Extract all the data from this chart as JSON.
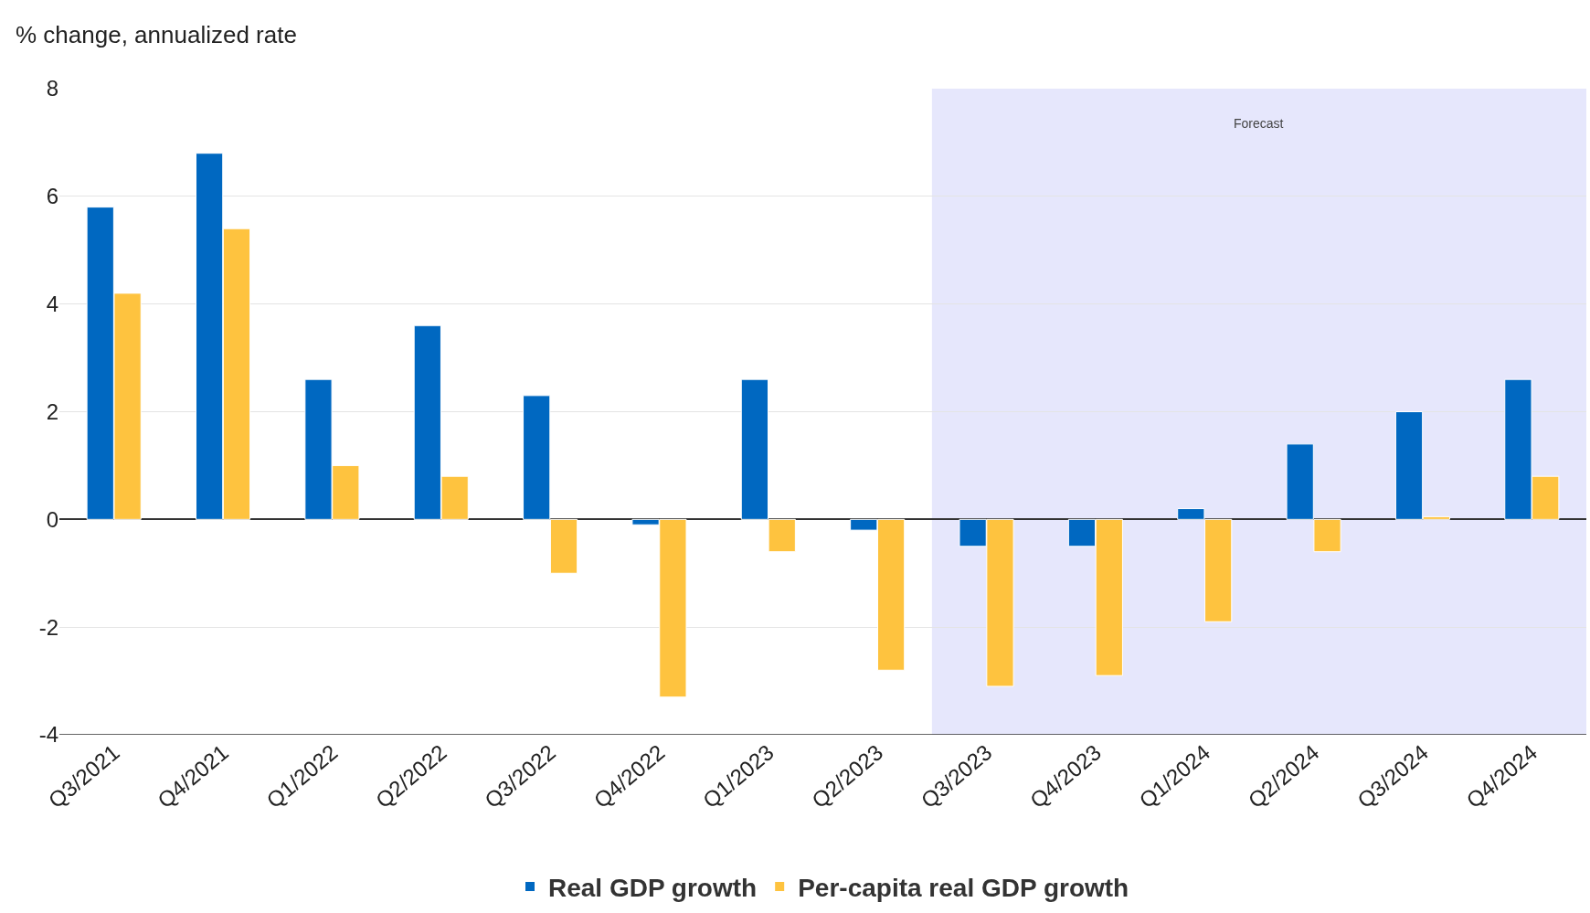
{
  "chart_data": {
    "type": "bar",
    "ylabel": "% change, annualized rate",
    "categories": [
      "Q3/2021",
      "Q4/2021",
      "Q1/2022",
      "Q2/2022",
      "Q3/2022",
      "Q4/2022",
      "Q1/2023",
      "Q2/2023",
      "Q3/2023",
      "Q4/2023",
      "Q1/2024",
      "Q2/2024",
      "Q3/2024",
      "Q4/2024"
    ],
    "series": [
      {
        "name": "Real GDP growth",
        "color": "#0068c1",
        "values": [
          5.8,
          6.8,
          2.6,
          3.6,
          2.3,
          -0.1,
          2.6,
          -0.2,
          -0.5,
          -0.5,
          0.2,
          1.4,
          2.0,
          2.6
        ]
      },
      {
        "name": "Per-capita real GDP growth",
        "color": "#fec33f",
        "values": [
          4.2,
          5.4,
          1.0,
          0.8,
          -1.0,
          -3.3,
          -0.6,
          -2.8,
          -3.1,
          -2.9,
          -1.9,
          -0.6,
          0.05,
          0.8
        ]
      }
    ],
    "ylim": [
      -4,
      8
    ],
    "yticks": [
      -4,
      -2,
      0,
      2,
      4,
      6,
      8
    ],
    "grid": "y",
    "legend": "bottom",
    "bands": [
      {
        "axis": "x",
        "from": "Q3/2023",
        "to": "Q4/2024",
        "label": "Forecast",
        "color": "#e6e7fc"
      }
    ]
  }
}
